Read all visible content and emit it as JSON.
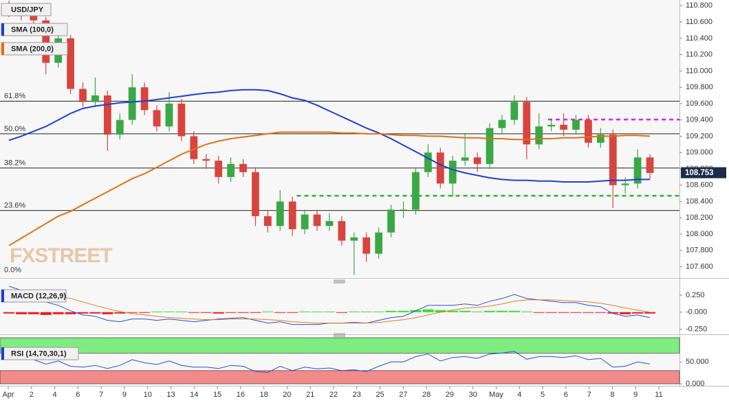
{
  "chart_data": [
    {
      "type": "candlestick",
      "title": "USD/JPY",
      "watermark": "FXSTREET",
      "up_color": "#3aa845",
      "down_color": "#d8443e",
      "open": [
        110.8,
        110.72,
        110.68,
        110.62,
        110.1,
        110.4,
        109.78,
        109.62,
        109.7,
        109.22,
        109.4,
        109.8,
        109.52,
        109.32,
        109.6,
        109.2,
        108.92,
        108.9,
        108.7,
        108.86,
        108.76,
        108.22,
        108.1,
        108.4,
        108.06,
        108.24,
        108.1,
        108.16,
        107.92,
        107.96,
        107.76,
        108.02,
        108.3,
        108.3,
        108.76,
        109.0,
        108.62,
        108.9,
        108.94,
        108.86,
        109.3,
        109.4,
        109.62,
        109.1,
        109.32,
        109.34,
        109.28,
        109.4,
        109.12,
        109.22,
        108.6,
        108.62,
        108.94
      ],
      "high": [
        110.86,
        110.78,
        110.74,
        110.66,
        110.54,
        110.44,
        109.86,
        109.92,
        109.76,
        109.48,
        109.96,
        109.86,
        109.58,
        109.74,
        109.66,
        109.26,
        108.98,
        108.96,
        108.94,
        108.92,
        108.82,
        108.28,
        108.54,
        108.46,
        108.3,
        108.3,
        108.26,
        108.22,
        108.02,
        108.02,
        108.08,
        108.36,
        108.4,
        108.82,
        109.1,
        109.06,
        108.96,
        109.24,
        109.0,
        109.36,
        109.46,
        109.7,
        109.68,
        109.48,
        109.42,
        109.48,
        109.46,
        109.46,
        109.3,
        109.28,
        108.7,
        109.04,
        108.98
      ],
      "low": [
        110.66,
        110.62,
        110.56,
        109.96,
        110.04,
        109.72,
        109.56,
        109.56,
        109.02,
        109.16,
        109.34,
        109.46,
        109.26,
        109.26,
        109.14,
        108.86,
        108.8,
        108.62,
        108.64,
        108.7,
        108.1,
        108.02,
        108.04,
        107.98,
        108.0,
        108.04,
        108.04,
        107.86,
        107.5,
        107.66,
        107.7,
        107.96,
        108.2,
        108.24,
        108.7,
        108.56,
        108.46,
        108.84,
        108.76,
        108.8,
        109.24,
        109.34,
        108.92,
        109.04,
        109.26,
        109.2,
        109.22,
        109.06,
        109.06,
        108.32,
        108.5,
        108.56,
        108.68
      ],
      "close": [
        110.72,
        110.68,
        110.62,
        110.1,
        110.4,
        109.78,
        109.62,
        109.7,
        109.22,
        109.4,
        109.8,
        109.52,
        109.32,
        109.6,
        109.2,
        108.92,
        108.9,
        108.7,
        108.86,
        108.76,
        108.22,
        108.1,
        108.4,
        108.06,
        108.24,
        108.1,
        108.16,
        107.92,
        107.96,
        107.76,
        108.02,
        108.3,
        108.3,
        108.76,
        109.0,
        108.62,
        108.9,
        108.94,
        108.86,
        109.3,
        109.4,
        109.62,
        109.1,
        109.32,
        109.34,
        109.28,
        109.4,
        109.12,
        109.22,
        108.6,
        108.62,
        108.94,
        108.75
      ],
      "series": [
        {
          "name": "SMA (100,0)",
          "color": "#1d3fd6",
          "values": [
            109.15,
            109.2,
            109.26,
            109.32,
            109.4,
            109.48,
            109.54,
            109.57,
            109.59,
            109.61,
            109.62,
            109.63,
            109.65,
            109.67,
            109.69,
            109.71,
            109.73,
            109.74,
            109.76,
            109.77,
            109.77,
            109.76,
            109.72,
            109.67,
            109.64,
            109.58,
            109.51,
            109.44,
            109.37,
            109.3,
            109.24,
            109.17,
            109.09,
            109.01,
            108.93,
            108.85,
            108.79,
            108.75,
            108.72,
            108.69,
            108.67,
            108.66,
            108.66,
            108.65,
            108.65,
            108.64,
            108.64,
            108.64,
            108.65,
            108.66,
            108.66,
            108.67,
            108.67
          ]
        },
        {
          "name": "SMA (200,0)",
          "color": "#e0720f",
          "values": [
            107.86,
            107.95,
            108.04,
            108.13,
            108.22,
            108.28,
            108.36,
            108.44,
            108.52,
            108.6,
            108.68,
            108.74,
            108.82,
            108.9,
            108.98,
            109.04,
            109.1,
            109.14,
            109.17,
            109.19,
            109.21,
            109.23,
            109.25,
            109.25,
            109.25,
            109.25,
            109.25,
            109.24,
            109.24,
            109.23,
            109.23,
            109.22,
            109.21,
            109.21,
            109.2,
            109.2,
            109.19,
            109.18,
            109.18,
            109.17,
            109.17,
            109.16,
            109.16,
            109.17,
            109.17,
            109.18,
            109.18,
            109.19,
            109.2,
            109.2,
            109.21,
            109.21,
            109.2
          ]
        }
      ],
      "fib_levels": [
        {
          "label": "61.8%",
          "value": 109.63
        },
        {
          "label": "50.0%",
          "value": 109.23
        },
        {
          "label": "38.2%",
          "value": 108.81
        },
        {
          "label": "23.6%",
          "value": 108.29
        },
        {
          "label": "0.0%",
          "value": 107.5
        }
      ],
      "dashed_levels": [
        {
          "value": 109.405,
          "color": "#e020e0"
        },
        {
          "value": 108.47,
          "color": "#22bb22"
        }
      ],
      "last_price": 108.753,
      "ylim": [
        107.47,
        110.87
      ],
      "yticks": [
        {
          "value": 110.8,
          "label": "110.800"
        },
        {
          "value": 110.6,
          "label": "110.600"
        },
        {
          "value": 110.4,
          "label": "110.400"
        },
        {
          "value": 110.2,
          "label": "110.200"
        },
        {
          "value": 110.0,
          "label": "110.000"
        },
        {
          "value": 109.8,
          "label": "109.800"
        },
        {
          "value": 109.6,
          "label": "109.600"
        },
        {
          "value": 109.4,
          "label": "109.400"
        },
        {
          "value": 109.2,
          "label": "109.200"
        },
        {
          "value": 109.0,
          "label": "109.000"
        },
        {
          "value": 108.8,
          "label": "108.800"
        },
        {
          "value": 108.6,
          "label": "108.600"
        },
        {
          "value": 108.4,
          "label": "108.400"
        },
        {
          "value": 108.2,
          "label": "108.200"
        },
        {
          "value": 108.0,
          "label": "108.000"
        },
        {
          "value": 107.8,
          "label": "107.800"
        },
        {
          "value": 107.6,
          "label": "107.600"
        }
      ],
      "x_labels": [
        "Apr",
        "2",
        "4",
        "6",
        "7",
        "9",
        "10",
        "13",
        "14",
        "15",
        "16",
        "18",
        "20",
        "21",
        "22",
        "23",
        "25",
        "27",
        "28",
        "29",
        "30",
        "May",
        "4",
        "5",
        "6",
        "7",
        "8",
        "9",
        "11"
      ]
    },
    {
      "type": "line",
      "title": "MACD (12,26,9)",
      "series": [
        {
          "color": "#2a4bd7",
          "values": [
            0.38,
            0.32,
            0.25,
            0.15,
            0.1,
            0.02,
            -0.04,
            -0.06,
            -0.12,
            -0.14,
            -0.1,
            -0.1,
            -0.12,
            -0.1,
            -0.12,
            -0.14,
            -0.12,
            -0.1,
            -0.09,
            -0.08,
            -0.12,
            -0.16,
            -0.14,
            -0.18,
            -0.18,
            -0.18,
            -0.16,
            -0.16,
            -0.15,
            -0.16,
            -0.12,
            -0.08,
            -0.06,
            0.02,
            0.1,
            0.1,
            0.1,
            0.12,
            0.1,
            0.16,
            0.2,
            0.26,
            0.2,
            0.18,
            0.16,
            0.14,
            0.14,
            0.1,
            0.08,
            -0.02,
            -0.06,
            -0.04,
            -0.08
          ]
        },
        {
          "color": "#e07b20",
          "values": [
            0.32,
            0.32,
            0.31,
            0.28,
            0.24,
            0.2,
            0.15,
            0.1,
            0.05,
            0.01,
            -0.02,
            -0.04,
            -0.06,
            -0.08,
            -0.09,
            -0.1,
            -0.11,
            -0.11,
            -0.1,
            -0.1,
            -0.1,
            -0.11,
            -0.12,
            -0.14,
            -0.15,
            -0.16,
            -0.16,
            -0.16,
            -0.16,
            -0.16,
            -0.15,
            -0.13,
            -0.11,
            -0.08,
            -0.04,
            0.0,
            0.03,
            0.06,
            0.07,
            0.09,
            0.12,
            0.16,
            0.18,
            0.18,
            0.18,
            0.17,
            0.16,
            0.15,
            0.13,
            0.1,
            0.06,
            0.03,
            0.0
          ]
        }
      ],
      "histogram": {
        "up_color": "#33dd33",
        "down_color": "#e8181c",
        "values": [
          -0.02,
          -0.03,
          -0.03,
          -0.04,
          -0.03,
          -0.03,
          -0.02,
          -0.02,
          -0.03,
          -0.02,
          -0.01,
          -0.01,
          0.01,
          0.01,
          0.01,
          -0.01,
          -0.01,
          -0.02,
          -0.01,
          -0.01,
          -0.01,
          0.01,
          -0.01,
          -0.01,
          0.01,
          0.01,
          0.01,
          -0.01,
          0.01,
          0.01,
          0.01,
          0.02,
          0.02,
          0.03,
          0.04,
          0.03,
          0.02,
          0.02,
          0.01,
          0.02,
          0.02,
          0.02,
          0.01,
          -0.01,
          -0.01,
          -0.01,
          -0.01,
          -0.01,
          -0.01,
          -0.02,
          -0.03,
          -0.02,
          -0.02
        ]
      },
      "ylim": [
        -0.3,
        0.47
      ],
      "yticks": [
        {
          "value": 0.25,
          "label": "0.250"
        },
        {
          "value": 0,
          "label": "-0.000"
        },
        {
          "value": -0.25,
          "label": "-0.250"
        }
      ]
    },
    {
      "type": "line",
      "title": "RSI (14,70,30,1)",
      "series": [
        {
          "color": "#2a4bd7",
          "values": [
            62,
            60,
            55,
            45,
            52,
            40,
            38,
            42,
            35,
            42,
            55,
            48,
            44,
            52,
            42,
            38,
            38,
            35,
            42,
            40,
            28,
            26,
            40,
            30,
            38,
            34,
            36,
            30,
            32,
            28,
            40,
            50,
            50,
            62,
            68,
            52,
            60,
            62,
            58,
            68,
            70,
            74,
            56,
            62,
            62,
            60,
            64,
            55,
            58,
            38,
            40,
            50,
            45
          ]
        }
      ],
      "bands": [
        {
          "value": 70,
          "side": "above",
          "color": "#80ec80"
        },
        {
          "value": 30,
          "side": "below",
          "color": "#f28a8a"
        }
      ],
      "ylim": [
        0,
        105
      ],
      "yticks": [
        {
          "value": 50,
          "label": "50.000"
        },
        {
          "value": 0,
          "label": "0.000"
        }
      ]
    }
  ]
}
